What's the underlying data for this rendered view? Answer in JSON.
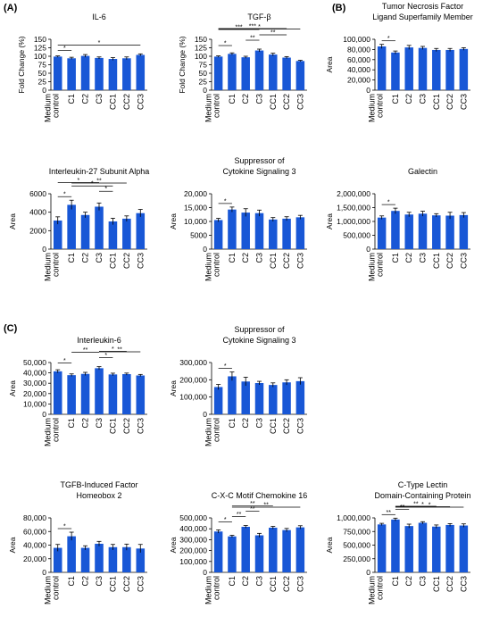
{
  "panel_labels": {
    "A": "(A)",
    "B": "(B)",
    "C": "(C)"
  },
  "colors": {
    "bar": "#1857d6",
    "error": "#000000",
    "sig": "#000000"
  },
  "categories": [
    "Medium control",
    "C1",
    "C2",
    "C3",
    "CC1",
    "CC2",
    "CC3"
  ],
  "chart_data": [
    {
      "type": "bar",
      "panel": "A",
      "title": [
        "IL-6"
      ],
      "ylabel": "Fold Change (%)",
      "ylim": [
        0,
        150
      ],
      "yticks": [
        0,
        25,
        50,
        75,
        100,
        125,
        150
      ],
      "ytick_labels": [
        "0",
        "25",
        "50",
        "75",
        "100",
        "125",
        "150"
      ],
      "values": [
        99,
        94,
        101,
        95,
        92,
        94,
        104
      ],
      "errors": [
        2,
        3,
        4,
        3,
        4,
        4,
        3
      ],
      "significance": [
        {
          "from": 0,
          "to": 1,
          "label": "*"
        },
        {
          "from": 0,
          "to": 6,
          "label": "*"
        }
      ]
    },
    {
      "type": "bar",
      "panel": "A",
      "title": [
        "TGF-β"
      ],
      "ylabel": "Fold Change (%)",
      "ylim": [
        0,
        150
      ],
      "yticks": [
        0,
        25,
        50,
        75,
        100,
        125,
        150
      ],
      "ytick_labels": [
        "0",
        "25",
        "50",
        "75",
        "100",
        "125",
        "150"
      ],
      "values": [
        99,
        107,
        97,
        117,
        105,
        96,
        86
      ],
      "errors": [
        2,
        3,
        3,
        4,
        4,
        3,
        2
      ],
      "significance": [
        {
          "from": 0,
          "to": 1,
          "label": "*"
        },
        {
          "from": 2,
          "to": 3,
          "label": "**"
        },
        {
          "from": 3,
          "to": 5,
          "label": "**"
        },
        {
          "from": 0,
          "to": 3,
          "label": "***"
        },
        {
          "from": 0,
          "to": 5,
          "label": "***"
        },
        {
          "from": 0,
          "to": 6,
          "label": "*"
        }
      ]
    },
    {
      "type": "bar",
      "panel": "B",
      "title": [
        "Tumor Necrosis Factor",
        "Ligand Superfamily Member"
      ],
      "ylabel": "Area",
      "ylim": [
        0,
        100000
      ],
      "yticks": [
        0,
        20000,
        40000,
        60000,
        80000,
        100000
      ],
      "ytick_labels": [
        "0",
        "20,000",
        "40,000",
        "60,000",
        "80,000",
        "100,000"
      ],
      "values": [
        86000,
        74000,
        84000,
        83000,
        79000,
        79000,
        81000
      ],
      "errors": [
        4000,
        3000,
        4000,
        3000,
        3000,
        3000,
        2500
      ],
      "significance": [
        {
          "from": 0,
          "to": 1,
          "label": "*"
        }
      ]
    },
    {
      "type": "bar",
      "panel": "A",
      "title": [
        "Interleukin-27 Subunit Alpha"
      ],
      "ylabel": "Area",
      "ylim": [
        0,
        6000
      ],
      "yticks": [
        0,
        2000,
        4000,
        6000
      ],
      "ytick_labels": [
        "0",
        "2000",
        "4000",
        "6000"
      ],
      "values": [
        3100,
        4800,
        3700,
        4600,
        3000,
        3300,
        3900
      ],
      "errors": [
        400,
        500,
        300,
        400,
        350,
        300,
        400
      ],
      "significance": [
        {
          "from": 0,
          "to": 1,
          "label": "*"
        },
        {
          "from": 1,
          "to": 4,
          "label": "*"
        },
        {
          "from": 3,
          "to": 4,
          "label": "*"
        },
        {
          "from": 0,
          "to": 3,
          "label": "*"
        },
        {
          "from": 1,
          "to": 5,
          "label": "**"
        }
      ]
    },
    {
      "type": "bar",
      "panel": "A",
      "title": [
        "Suppressor of",
        "Cytokine Signaling 3"
      ],
      "ylabel": "Area",
      "ylim": [
        0,
        20000
      ],
      "yticks": [
        0,
        5000,
        10000,
        15000,
        20000
      ],
      "ytick_labels": [
        "0",
        "5000",
        "10,000",
        "15,000",
        "20,000"
      ],
      "values": [
        10500,
        14300,
        13200,
        13000,
        10700,
        11000,
        11500
      ],
      "errors": [
        600,
        900,
        1400,
        1100,
        700,
        700,
        700
      ],
      "significance": [
        {
          "from": 0,
          "to": 1,
          "label": "*"
        }
      ]
    },
    {
      "type": "bar",
      "panel": "B",
      "title": [
        "Galectin"
      ],
      "ylabel": "Area",
      "ylim": [
        0,
        2000000
      ],
      "yticks": [
        0,
        500000,
        1000000,
        1500000,
        2000000
      ],
      "ytick_labels": [
        "0",
        "500,000",
        "1,000,000",
        "1,500,000",
        "2,000,000"
      ],
      "values": [
        1140000,
        1380000,
        1250000,
        1280000,
        1220000,
        1210000,
        1230000
      ],
      "errors": [
        60000,
        100000,
        80000,
        90000,
        60000,
        120000,
        90000
      ],
      "significance": [
        {
          "from": 0,
          "to": 1,
          "label": "*"
        }
      ]
    },
    {
      "type": "bar",
      "panel": "C",
      "title": [
        "Interleukin-6"
      ],
      "ylabel": "Area",
      "ylim": [
        0,
        50000
      ],
      "yticks": [
        0,
        10000,
        20000,
        30000,
        40000,
        50000
      ],
      "ytick_labels": [
        "0",
        "10,000",
        "20,000",
        "30,000",
        "40,000",
        "50,000"
      ],
      "values": [
        41500,
        37800,
        39000,
        44500,
        38500,
        38800,
        37500
      ],
      "errors": [
        1500,
        1200,
        1500,
        1500,
        1200,
        1000,
        1000
      ],
      "significance": [
        {
          "from": 0,
          "to": 1,
          "label": "*"
        },
        {
          "from": 1,
          "to": 3,
          "label": "**"
        },
        {
          "from": 3,
          "to": 4,
          "label": "*"
        },
        {
          "from": 3,
          "to": 5,
          "label": "*"
        },
        {
          "from": 3,
          "to": 6,
          "label": "**"
        }
      ]
    },
    {
      "type": "bar",
      "panel": "C",
      "title": [
        "Suppressor of",
        "Cytokine Signaling 3"
      ],
      "ylabel": "Area",
      "ylim": [
        0,
        300000
      ],
      "yticks": [
        0,
        100000,
        200000,
        300000
      ],
      "ytick_labels": [
        "0",
        "100,000",
        "200,000",
        "300,000"
      ],
      "values": [
        158000,
        220000,
        190000,
        181000,
        170000,
        185000,
        192000
      ],
      "errors": [
        15000,
        25000,
        25000,
        10000,
        12000,
        15000,
        20000
      ],
      "significance": [
        {
          "from": 0,
          "to": 1,
          "label": "*"
        }
      ]
    },
    {
      "type": "bar",
      "panel": "C",
      "title": [
        "TGFB-Induced Factor",
        "Homeobox 2"
      ],
      "ylabel": "Area",
      "ylim": [
        0,
        80000
      ],
      "yticks": [
        0,
        20000,
        40000,
        60000,
        80000
      ],
      "ytick_labels": [
        "0",
        "20,000",
        "40,000",
        "60,000",
        "80,000"
      ],
      "values": [
        36000,
        53000,
        36000,
        42000,
        37000,
        37000,
        35000
      ],
      "errors": [
        5000,
        6000,
        3000,
        3500,
        4000,
        4500,
        6000
      ],
      "significance": [
        {
          "from": 0,
          "to": 1,
          "label": "*"
        }
      ]
    },
    {
      "type": "bar",
      "panel": "C",
      "title": [
        "C-X-C Motif Chemokine 16"
      ],
      "ylabel": "Area",
      "ylim": [
        0,
        500000
      ],
      "yticks": [
        0,
        100000,
        200000,
        300000,
        400000,
        500000
      ],
      "ytick_labels": [
        "0",
        "100,000",
        "200,000",
        "300,000",
        "400,000",
        "500,000"
      ],
      "values": [
        375000,
        330000,
        418000,
        340000,
        410000,
        388000,
        413000
      ],
      "errors": [
        15000,
        10000,
        12000,
        18000,
        12000,
        15000,
        15000
      ],
      "significance": [
        {
          "from": 0,
          "to": 1,
          "label": "*"
        },
        {
          "from": 1,
          "to": 2,
          "label": "**"
        },
        {
          "from": 2,
          "to": 3,
          "label": "**"
        },
        {
          "from": 1,
          "to": 4,
          "label": "**"
        },
        {
          "from": 1,
          "to": 6,
          "label": "**"
        }
      ]
    },
    {
      "type": "bar",
      "panel": "C",
      "title": [
        "C-Type Lectin",
        "Domain-Containing Protein"
      ],
      "ylabel": "Area",
      "ylim": [
        0,
        1000000
      ],
      "yticks": [
        0,
        250000,
        500000,
        750000,
        1000000
      ],
      "ytick_labels": [
        "0",
        "250,000",
        "500,000",
        "750,000",
        "1,000,000"
      ],
      "values": [
        880000,
        970000,
        850000,
        910000,
        840000,
        870000,
        860000
      ],
      "errors": [
        20000,
        25000,
        35000,
        20000,
        30000,
        25000,
        30000
      ],
      "significance": [
        {
          "from": 0,
          "to": 1,
          "label": "**"
        },
        {
          "from": 1,
          "to": 2,
          "label": "**"
        },
        {
          "from": 1,
          "to": 4,
          "label": "**"
        },
        {
          "from": 1,
          "to": 5,
          "label": "*"
        },
        {
          "from": 1,
          "to": 6,
          "label": "*"
        }
      ]
    }
  ]
}
